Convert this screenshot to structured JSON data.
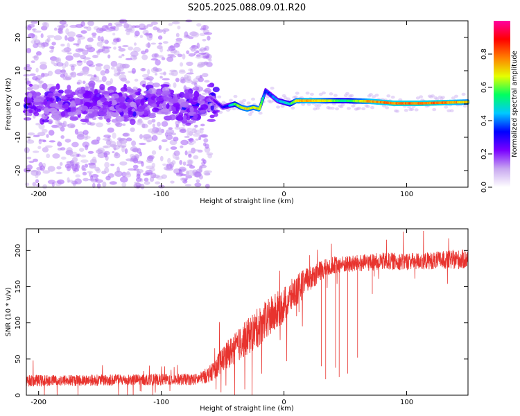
{
  "title": "S205.2025.088.09.01.R20",
  "chart_data": [
    {
      "type": "heatmap",
      "name": "spectrogram",
      "xlabel": "Height of straight line (km)",
      "ylabel": "Frequency (Hz)",
      "xlim": [
        -210,
        150
      ],
      "ylim": [
        -25,
        25
      ],
      "xticks": [
        -200,
        -100,
        0,
        100
      ],
      "xtick_labels": [
        "-200",
        "-100",
        "0",
        "100"
      ],
      "yticks": [
        -20,
        -10,
        0,
        10,
        20
      ],
      "ytick_labels": [
        "-20",
        "-10",
        "0",
        "10",
        "20"
      ],
      "colorbar": {
        "label": "Normalized spectral amplitude",
        "range": [
          0,
          1
        ],
        "ticks": [
          0.0,
          0.2,
          0.4,
          0.6,
          0.8
        ],
        "tick_labels": [
          "0.0",
          "0.2",
          "0.4",
          "0.6",
          "0.8"
        ],
        "colors": [
          "#ffffff",
          "#c8a8f0",
          "#7a00ff",
          "#0000ff",
          "#00c8ff",
          "#00ff60",
          "#e6ff00",
          "#ff8000",
          "#ff0000",
          "#ff00a0"
        ]
      },
      "noise_region": {
        "x_from": -210,
        "x_to": -60,
        "freq_spread_hz": 25,
        "typical_amplitude": 0.1
      },
      "signal_ridge": {
        "x": [
          -60,
          -55,
          -50,
          -45,
          -40,
          -35,
          -30,
          -25,
          -20,
          -15,
          -10,
          -5,
          0,
          5,
          10,
          20,
          30,
          50,
          70,
          90,
          110,
          130,
          150
        ],
        "frequency_hz": [
          2.0,
          0.5,
          -1.0,
          -0.5,
          0.0,
          -1.0,
          -1.5,
          -1.0,
          -1.5,
          4.0,
          2.5,
          1.0,
          0.5,
          0.0,
          1.0,
          1.0,
          1.0,
          1.0,
          0.8,
          0.2,
          0.2,
          0.4,
          0.6
        ],
        "amplitude": [
          0.2,
          0.25,
          0.3,
          0.4,
          0.6,
          0.7,
          0.75,
          0.7,
          0.75,
          0.35,
          0.4,
          0.45,
          0.5,
          0.55,
          0.75,
          0.8,
          0.75,
          0.55,
          0.8,
          0.85,
          0.85,
          0.85,
          0.75
        ]
      }
    },
    {
      "type": "line",
      "name": "snr",
      "xlabel": "Height of straight line (km)",
      "ylabel": "SNR (10 * v/v)",
      "xlim": [
        -210,
        150
      ],
      "ylim": [
        0,
        230
      ],
      "xticks": [
        -200,
        -100,
        0,
        100
      ],
      "xtick_labels": [
        "-200",
        "-100",
        "0",
        "100"
      ],
      "yticks": [
        0,
        50,
        100,
        150,
        200
      ],
      "ytick_labels": [
        "0",
        "50",
        "100",
        "150",
        "200"
      ],
      "color": "#e8332e",
      "trend": {
        "x": [
          -210,
          -70,
          -60,
          -50,
          -40,
          -30,
          -20,
          -10,
          0,
          10,
          20,
          30,
          40,
          60,
          80,
          100,
          120,
          150
        ],
        "y": [
          20,
          22,
          30,
          50,
          65,
          80,
          95,
          110,
          125,
          145,
          160,
          172,
          180,
          182,
          185,
          185,
          186,
          188
        ],
        "noise": [
          8,
          8,
          12,
          18,
          22,
          25,
          28,
          28,
          25,
          22,
          18,
          14,
          12,
          12,
          12,
          12,
          12,
          14
        ]
      },
      "dropouts": [
        {
          "x": 30.5,
          "y": 40
        },
        {
          "x": 34,
          "y": 22
        },
        {
          "x": 42,
          "y": 38
        },
        {
          "x": 45,
          "y": 25
        },
        {
          "x": 52,
          "y": 30
        },
        {
          "x": 60,
          "y": 52
        },
        {
          "x": 72,
          "y": 140
        }
      ]
    }
  ]
}
